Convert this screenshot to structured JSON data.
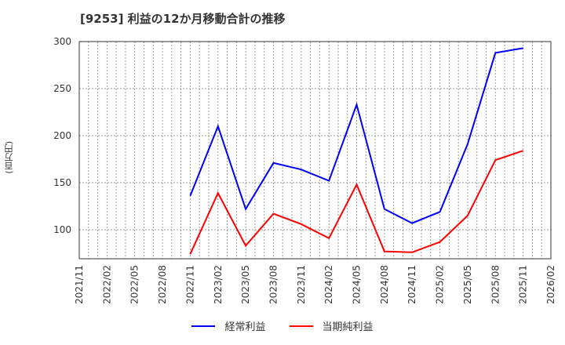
{
  "title": "[9253]  利益の12か月移動合計の推移",
  "y_axis_label": "(百万円)",
  "legend": [
    {
      "label": "経常利益",
      "color": "#0000ff"
    },
    {
      "label": "当期純利益",
      "color": "#ff0000"
    }
  ],
  "chart_data": {
    "type": "line",
    "title": "[9253]  利益の12か月移動合計の推移",
    "xlabel": "",
    "ylabel": "(百万円)",
    "ylim": [
      70,
      300
    ],
    "yticks": [
      100,
      150,
      200,
      250,
      300
    ],
    "x_tick_labels": [
      "2021/11",
      "2022/02",
      "2022/05",
      "2022/08",
      "2022/11",
      "2023/02",
      "2023/05",
      "2023/08",
      "2023/11",
      "2024/02",
      "2024/05",
      "2024/08",
      "2024/11",
      "2025/02",
      "2025/05",
      "2025/08",
      "2025/11",
      "2026/02"
    ],
    "grid": true,
    "legend_position": "bottom",
    "x": [
      "2022/11",
      "2023/02",
      "2023/05",
      "2023/08",
      "2023/11",
      "2024/02",
      "2024/05",
      "2024/08",
      "2024/11",
      "2025/02",
      "2025/05",
      "2025/08",
      "2025/11"
    ],
    "series": [
      {
        "name": "経常利益",
        "color": "#0000ff",
        "values": [
          136,
          210,
          122,
          171,
          164,
          152,
          233,
          122,
          107,
          119,
          191,
          288,
          293
        ]
      },
      {
        "name": "当期純利益",
        "color": "#ff0000",
        "values": [
          74,
          139,
          83,
          117,
          106,
          91,
          148,
          77,
          76,
          87,
          115,
          174,
          184
        ]
      }
    ]
  }
}
